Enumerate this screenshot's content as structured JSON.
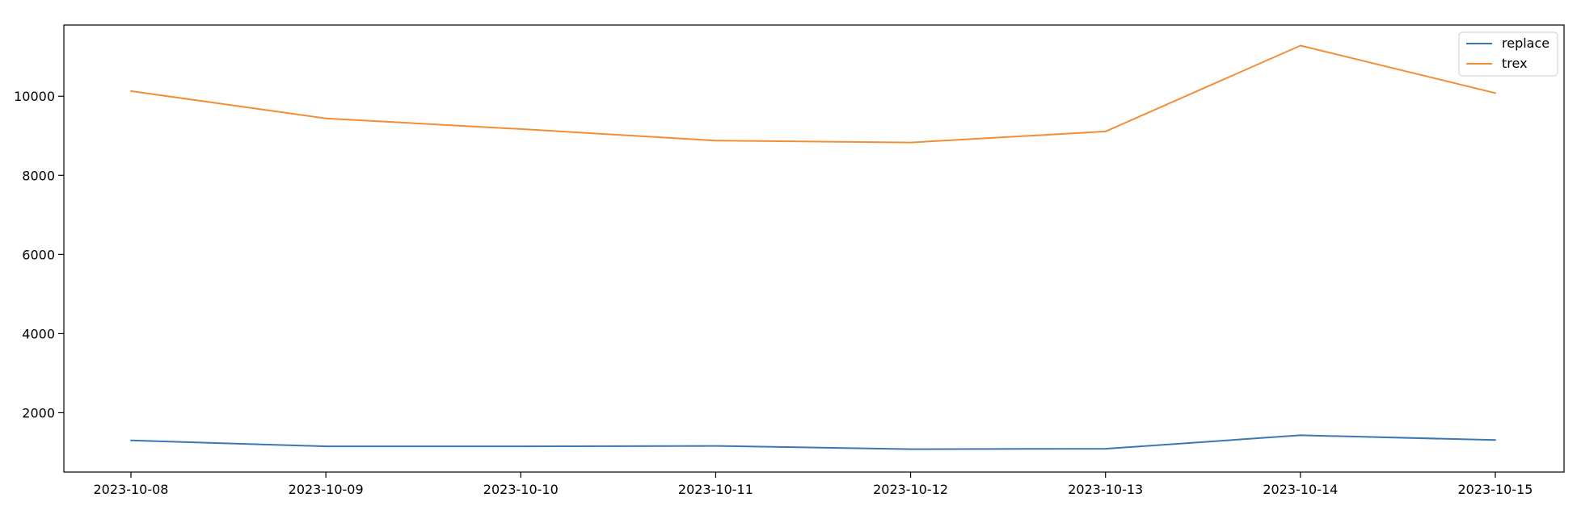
{
  "chart_data": {
    "type": "line",
    "title": "",
    "xlabel": "",
    "ylabel": "",
    "x": [
      "2023-10-08",
      "2023-10-09",
      "2023-10-10",
      "2023-10-11",
      "2023-10-12",
      "2023-10-13",
      "2023-10-14",
      "2023-10-15"
    ],
    "ylim": [
      500,
      11800
    ],
    "yticks": [
      2000,
      4000,
      6000,
      8000,
      10000
    ],
    "grid": false,
    "legend_position": "top-right",
    "series": [
      {
        "name": "replace",
        "color": "#3a78b5",
        "values": [
          1300,
          1150,
          1150,
          1160,
          1080,
          1090,
          1430,
          1310
        ]
      },
      {
        "name": "trex",
        "color": "#f28e35",
        "values": [
          10130,
          9440,
          9170,
          8880,
          8830,
          9110,
          11280,
          10080
        ]
      }
    ]
  }
}
